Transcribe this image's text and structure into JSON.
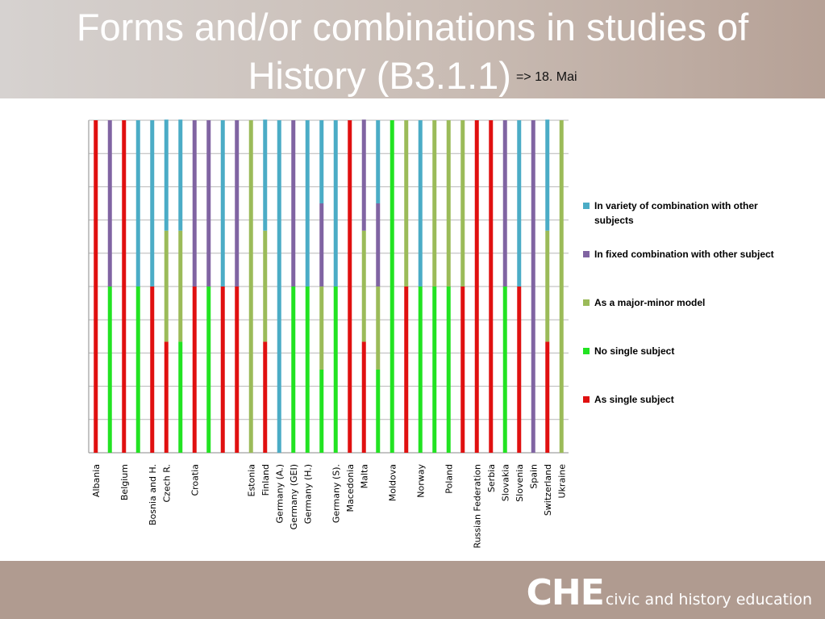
{
  "slide": {
    "title_line1": "Forms and/or combinations in studies of",
    "title_line2": "History (B3.1.1)",
    "title_note": "=> 18. Mai"
  },
  "footer": {
    "logo_bold": "CHE",
    "logo_text": "civic and history education"
  },
  "colors": {
    "variety": "#4bacc6",
    "fixed": "#8064a2",
    "major_minor": "#9bbb59",
    "no_single": "#22e322",
    "single": "#e01010"
  },
  "chart_data": {
    "type": "bar",
    "stacked": true,
    "ylim": [
      0,
      5
    ],
    "grid": true,
    "legend_position": "right",
    "legend": [
      {
        "key": "variety",
        "label_lines": [
          "In variety of combination with other",
          "subjects"
        ]
      },
      {
        "key": "fixed",
        "label_lines": [
          "In fixed combination with other subject"
        ]
      },
      {
        "key": "major_minor",
        "label_lines": [
          "As a major-minor model"
        ]
      },
      {
        "key": "no_single",
        "label_lines": [
          "No single subject"
        ]
      },
      {
        "key": "single",
        "label_lines": [
          "As single subject"
        ]
      }
    ],
    "bars": [
      {
        "label": "Albania",
        "stack": [
          [
            "single",
            5
          ]
        ]
      },
      {
        "label": "",
        "stack": [
          [
            "no_single",
            2.5
          ],
          [
            "fixed",
            2.5
          ]
        ]
      },
      {
        "label": "Belgium",
        "stack": [
          [
            "single",
            5
          ]
        ]
      },
      {
        "label": "",
        "stack": [
          [
            "no_single",
            2.5
          ],
          [
            "variety",
            2.5
          ]
        ]
      },
      {
        "label": "Bosnia and H.",
        "stack": [
          [
            "single",
            2.5
          ],
          [
            "variety",
            2.5
          ]
        ]
      },
      {
        "label": "Czech R.",
        "stack": [
          [
            "single",
            1.67
          ],
          [
            "major_minor",
            1.67
          ],
          [
            "variety",
            1.67
          ]
        ]
      },
      {
        "label": "",
        "stack": [
          [
            "no_single",
            1.67
          ],
          [
            "major_minor",
            1.67
          ],
          [
            "variety",
            1.67
          ]
        ]
      },
      {
        "label": "Croatia",
        "stack": [
          [
            "single",
            2.5
          ],
          [
            "fixed",
            2.5
          ]
        ]
      },
      {
        "label": "",
        "stack": [
          [
            "no_single",
            2.5
          ],
          [
            "fixed",
            2.5
          ]
        ]
      },
      {
        "label": "",
        "stack": [
          [
            "single",
            2.5
          ],
          [
            "variety",
            2.5
          ]
        ]
      },
      {
        "label": "",
        "stack": [
          [
            "single",
            2.5
          ],
          [
            "fixed",
            2.5
          ]
        ]
      },
      {
        "label": "Estonia",
        "stack": [
          [
            "major_minor",
            5
          ]
        ]
      },
      {
        "label": "Finland",
        "stack": [
          [
            "single",
            1.67
          ],
          [
            "major_minor",
            1.67
          ],
          [
            "variety",
            1.67
          ]
        ]
      },
      {
        "label": "Germany (A.)",
        "stack": [
          [
            "variety",
            5
          ]
        ]
      },
      {
        "label": "Germany (GEI)",
        "stack": [
          [
            "no_single",
            2.5
          ],
          [
            "fixed",
            2.5
          ]
        ]
      },
      {
        "label": "Germany (H.)",
        "stack": [
          [
            "no_single",
            2.5
          ],
          [
            "variety",
            2.5
          ]
        ]
      },
      {
        "label": "",
        "stack": [
          [
            "no_single",
            1.25
          ],
          [
            "major_minor",
            1.25
          ],
          [
            "fixed",
            1.25
          ],
          [
            "variety",
            1.25
          ]
        ]
      },
      {
        "label": "Germany (S).",
        "stack": [
          [
            "no_single",
            2.5
          ],
          [
            "variety",
            2.5
          ]
        ]
      },
      {
        "label": "Macedonia",
        "stack": [
          [
            "single",
            5
          ]
        ]
      },
      {
        "label": "Malta",
        "stack": [
          [
            "single",
            1.67
          ],
          [
            "major_minor",
            1.67
          ],
          [
            "fixed",
            1.67
          ]
        ]
      },
      {
        "label": "",
        "stack": [
          [
            "no_single",
            1.25
          ],
          [
            "major_minor",
            1.25
          ],
          [
            "fixed",
            1.25
          ],
          [
            "variety",
            1.25
          ]
        ]
      },
      {
        "label": "Moldova",
        "stack": [
          [
            "no_single",
            5
          ]
        ]
      },
      {
        "label": "",
        "stack": [
          [
            "single",
            2.5
          ],
          [
            "major_minor",
            2.5
          ]
        ]
      },
      {
        "label": "Norway",
        "stack": [
          [
            "no_single",
            2.5
          ],
          [
            "variety",
            2.5
          ]
        ]
      },
      {
        "label": "",
        "stack": [
          [
            "no_single",
            2.5
          ],
          [
            "major_minor",
            2.5
          ]
        ]
      },
      {
        "label": "Poland",
        "stack": [
          [
            "no_single",
            2.5
          ],
          [
            "major_minor",
            2.5
          ]
        ]
      },
      {
        "label": "",
        "stack": [
          [
            "single",
            2.5
          ],
          [
            "major_minor",
            2.5
          ]
        ]
      },
      {
        "label": "Russian Federation",
        "stack": [
          [
            "single",
            5
          ]
        ]
      },
      {
        "label": "Serbia",
        "stack": [
          [
            "single",
            5
          ]
        ]
      },
      {
        "label": "Slovakia",
        "stack": [
          [
            "no_single",
            2.5
          ],
          [
            "fixed",
            2.5
          ]
        ]
      },
      {
        "label": "Slovenia",
        "stack": [
          [
            "single",
            2.5
          ],
          [
            "variety",
            2.5
          ]
        ]
      },
      {
        "label": "Spain",
        "stack": [
          [
            "fixed",
            5
          ]
        ]
      },
      {
        "label": "Switzerland",
        "stack": [
          [
            "single",
            1.67
          ],
          [
            "major_minor",
            1.67
          ],
          [
            "variety",
            1.67
          ]
        ]
      },
      {
        "label": "Ukraine",
        "stack": [
          [
            "major_minor",
            5
          ]
        ]
      }
    ]
  }
}
